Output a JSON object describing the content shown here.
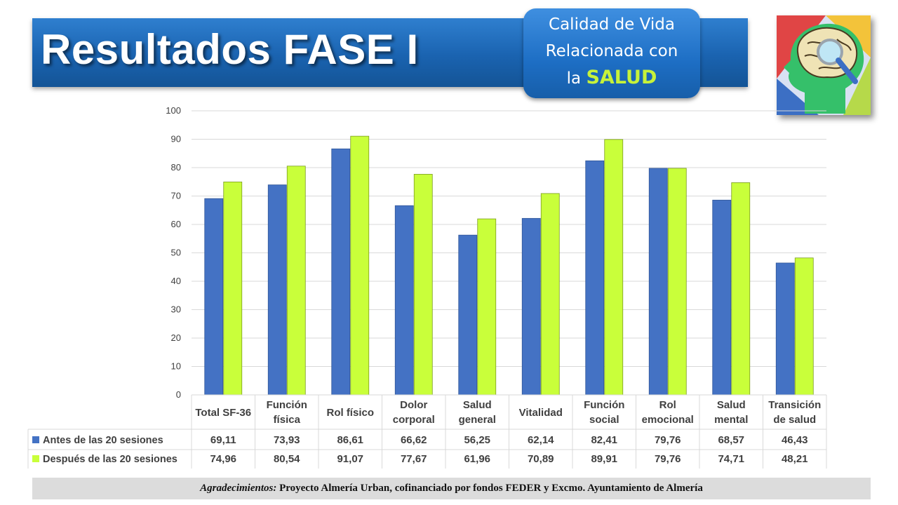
{
  "title": "Resultados FASE I",
  "badge": {
    "line1": "Calidad de Vida",
    "line2": "Relacionada con",
    "line3_prefix": "la",
    "line3_highlight": "SALUD"
  },
  "logo": {
    "icon": "brain-magnifier-icon"
  },
  "footer": {
    "italic": "Agradecimientos:",
    "text": " Proyecto Almería Urban, cofinanciado por fondos FEDER y Excmo. Ayuntamiento de Almería"
  },
  "colors": {
    "series1": "#4472c4",
    "series2": "#c9ff3a"
  },
  "chart_data": {
    "type": "bar",
    "categories": [
      [
        "Total SF-36"
      ],
      [
        "Función",
        "física"
      ],
      [
        "Rol físico"
      ],
      [
        "Dolor",
        "corporal"
      ],
      [
        "Salud",
        "general"
      ],
      [
        "Vitalidad"
      ],
      [
        "Función",
        "social"
      ],
      [
        "Rol",
        "emocional"
      ],
      [
        "Salud",
        "mental"
      ],
      [
        "Transición",
        "de salud"
      ]
    ],
    "series": [
      {
        "name": "Antes de las 20 sesiones",
        "values": [
          69.11,
          73.93,
          86.61,
          66.62,
          56.25,
          62.14,
          82.41,
          79.76,
          68.57,
          46.43
        ],
        "labels": [
          "69,11",
          "73,93",
          "86,61",
          "66,62",
          "56,25",
          "62,14",
          "82,41",
          "79,76",
          "68,57",
          "46,43"
        ]
      },
      {
        "name": "Después de las 20 sesiones",
        "values": [
          74.96,
          80.54,
          91.07,
          77.67,
          61.96,
          70.89,
          89.91,
          79.76,
          74.71,
          48.21
        ],
        "labels": [
          "74,96",
          "80,54",
          "91,07",
          "77,67",
          "61,96",
          "70,89",
          "89,91",
          "79,76",
          "74,71",
          "48,21"
        ]
      }
    ],
    "yticks": [
      "0",
      "10",
      "20",
      "30",
      "40",
      "50",
      "60",
      "70",
      "80",
      "90",
      "100"
    ],
    "ylim": [
      0,
      100
    ],
    "grid": true,
    "legend": "data-table"
  }
}
